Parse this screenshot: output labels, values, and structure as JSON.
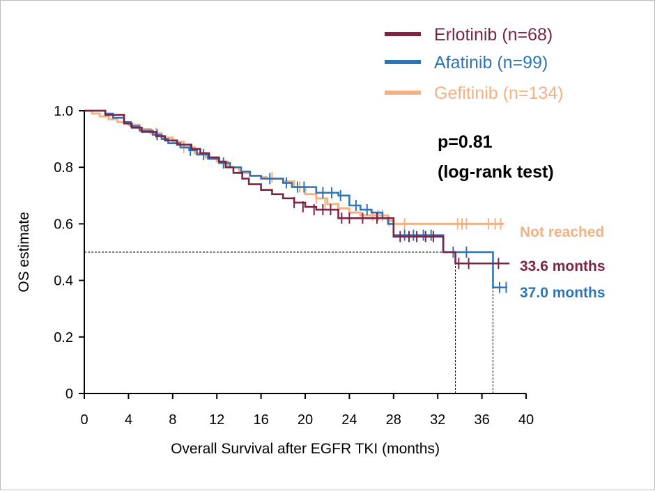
{
  "chart_data": {
    "type": "line",
    "subtype": "kaplan-meier step curve",
    "xlabel": "Overall Survival after EGFR TKI (months)",
    "ylabel": "OS estimate",
    "xlim": [
      0,
      40
    ],
    "ylim": [
      0,
      1.0
    ],
    "xticks": [
      0,
      4,
      8,
      12,
      16,
      20,
      24,
      28,
      32,
      36,
      40
    ],
    "yticks": [
      0,
      0.2,
      0.4,
      0.6,
      0.8,
      1.0
    ],
    "ytick_labels": [
      "0",
      "0.2",
      "0.4",
      "0.6",
      "0.8",
      "1.0"
    ],
    "grid": false,
    "legend_position": "top-right",
    "reference_line": {
      "y": 0.5,
      "x_drops": [
        33.6,
        37.0
      ]
    },
    "annotation": {
      "line1": "p=0.81",
      "line2": "(log-rank test)"
    },
    "series": [
      {
        "name": "Erlotinib (n=68)",
        "color": "#7b2446",
        "end_label": "33.6 months",
        "points": [
          [
            0,
            1.0
          ],
          [
            1.9,
            1.0
          ],
          [
            1.9,
            0.985
          ],
          [
            3.6,
            0.985
          ],
          [
            3.6,
            0.955
          ],
          [
            4.3,
            0.94
          ],
          [
            5.2,
            0.925
          ],
          [
            6.5,
            0.91
          ],
          [
            7.3,
            0.895
          ],
          [
            8.4,
            0.88
          ],
          [
            9.7,
            0.865
          ],
          [
            10.5,
            0.85
          ],
          [
            11.3,
            0.835
          ],
          [
            12.2,
            0.82
          ],
          [
            12.8,
            0.8
          ],
          [
            13.5,
            0.78
          ],
          [
            14.3,
            0.76
          ],
          [
            14.9,
            0.74
          ],
          [
            16.0,
            0.72
          ],
          [
            17.0,
            0.705
          ],
          [
            18.0,
            0.69
          ],
          [
            19.0,
            0.675
          ],
          [
            20.0,
            0.66
          ],
          [
            21.0,
            0.65
          ],
          [
            23.0,
            0.62
          ],
          [
            25.0,
            0.62
          ],
          [
            27.9,
            0.62
          ],
          [
            28.0,
            0.555
          ],
          [
            32.0,
            0.555
          ],
          [
            32.5,
            0.5
          ],
          [
            33.0,
            0.5
          ],
          [
            33.6,
            0.46
          ],
          [
            38.5,
            0.46
          ]
        ],
        "censors": [
          [
            19.0,
            0.675
          ],
          [
            19.8,
            0.66
          ],
          [
            20.8,
            0.65
          ],
          [
            21.6,
            0.65
          ],
          [
            22.3,
            0.65
          ],
          [
            23.3,
            0.62
          ],
          [
            24.0,
            0.62
          ],
          [
            25.2,
            0.62
          ],
          [
            26.5,
            0.62
          ],
          [
            28.6,
            0.555
          ],
          [
            29.4,
            0.555
          ],
          [
            30.1,
            0.555
          ],
          [
            30.9,
            0.555
          ],
          [
            31.6,
            0.555
          ],
          [
            33.9,
            0.46
          ],
          [
            34.8,
            0.46
          ],
          [
            37.5,
            0.46
          ]
        ]
      },
      {
        "name": "Afatinib (n=99)",
        "color": "#2e75b6",
        "end_label": "37.0 months",
        "points": [
          [
            0,
            1.0
          ],
          [
            1.9,
            1.0
          ],
          [
            1.9,
            0.99
          ],
          [
            2.6,
            0.975
          ],
          [
            3.6,
            0.96
          ],
          [
            4.2,
            0.945
          ],
          [
            5.0,
            0.93
          ],
          [
            6.2,
            0.915
          ],
          [
            7.0,
            0.9
          ],
          [
            7.6,
            0.885
          ],
          [
            8.7,
            0.87
          ],
          [
            9.5,
            0.86
          ],
          [
            10.2,
            0.845
          ],
          [
            11.2,
            0.83
          ],
          [
            12.2,
            0.815
          ],
          [
            13.2,
            0.8
          ],
          [
            14.2,
            0.785
          ],
          [
            15.0,
            0.77
          ],
          [
            16.0,
            0.76
          ],
          [
            18.0,
            0.745
          ],
          [
            18.8,
            0.73
          ],
          [
            21.0,
            0.71
          ],
          [
            23.0,
            0.7
          ],
          [
            24.0,
            0.665
          ],
          [
            25.0,
            0.65
          ],
          [
            26.0,
            0.64
          ],
          [
            27.0,
            0.62
          ],
          [
            27.5,
            0.6
          ],
          [
            28.0,
            0.56
          ],
          [
            32.0,
            0.56
          ],
          [
            32.5,
            0.5
          ],
          [
            36.9,
            0.5
          ],
          [
            37.0,
            0.375
          ],
          [
            38.3,
            0.375
          ]
        ],
        "censors": [
          [
            6.6,
            0.915
          ],
          [
            9.6,
            0.86
          ],
          [
            10.8,
            0.845
          ],
          [
            12.6,
            0.815
          ],
          [
            16.8,
            0.76
          ],
          [
            18.3,
            0.745
          ],
          [
            19.3,
            0.73
          ],
          [
            19.9,
            0.73
          ],
          [
            21.6,
            0.71
          ],
          [
            22.4,
            0.71
          ],
          [
            23.2,
            0.7
          ],
          [
            24.6,
            0.665
          ],
          [
            25.6,
            0.65
          ],
          [
            29.0,
            0.56
          ],
          [
            29.8,
            0.56
          ],
          [
            30.7,
            0.56
          ],
          [
            31.4,
            0.56
          ],
          [
            33.4,
            0.5
          ],
          [
            34.6,
            0.5
          ],
          [
            37.6,
            0.375
          ],
          [
            38.2,
            0.375
          ]
        ]
      },
      {
        "name": "Gefitinib (n=134)",
        "color": "#f4b183",
        "end_label": "Not reached",
        "points": [
          [
            0,
            1.0
          ],
          [
            0.7,
            0.99
          ],
          [
            1.4,
            0.98
          ],
          [
            2.2,
            0.97
          ],
          [
            3.0,
            0.96
          ],
          [
            4.0,
            0.95
          ],
          [
            5.0,
            0.935
          ],
          [
            6.0,
            0.92
          ],
          [
            7.0,
            0.905
          ],
          [
            8.0,
            0.89
          ],
          [
            9.0,
            0.87
          ],
          [
            10.0,
            0.85
          ],
          [
            11.0,
            0.835
          ],
          [
            12.0,
            0.82
          ],
          [
            13.0,
            0.8
          ],
          [
            14.0,
            0.78
          ],
          [
            15.0,
            0.77
          ],
          [
            16.0,
            0.765
          ],
          [
            16.5,
            0.76
          ],
          [
            18.0,
            0.75
          ],
          [
            19.0,
            0.73
          ],
          [
            20.0,
            0.705
          ],
          [
            21.0,
            0.69
          ],
          [
            22.0,
            0.67
          ],
          [
            23.0,
            0.655
          ],
          [
            24.0,
            0.64
          ],
          [
            25.0,
            0.63
          ],
          [
            27.5,
            0.61
          ],
          [
            28.0,
            0.6
          ],
          [
            38.0,
            0.6
          ]
        ],
        "censors": [
          [
            6.5,
            0.92
          ],
          [
            9.0,
            0.87
          ],
          [
            17.0,
            0.765
          ],
          [
            19.5,
            0.73
          ],
          [
            21.0,
            0.69
          ],
          [
            21.8,
            0.67
          ],
          [
            23.0,
            0.655
          ],
          [
            26.1,
            0.63
          ],
          [
            26.6,
            0.63
          ],
          [
            27.0,
            0.63
          ],
          [
            27.6,
            0.61
          ],
          [
            29.0,
            0.6
          ],
          [
            33.8,
            0.6
          ],
          [
            34.2,
            0.6
          ],
          [
            34.6,
            0.6
          ],
          [
            36.6,
            0.6
          ],
          [
            37.2,
            0.6
          ],
          [
            37.7,
            0.6
          ]
        ]
      }
    ]
  }
}
